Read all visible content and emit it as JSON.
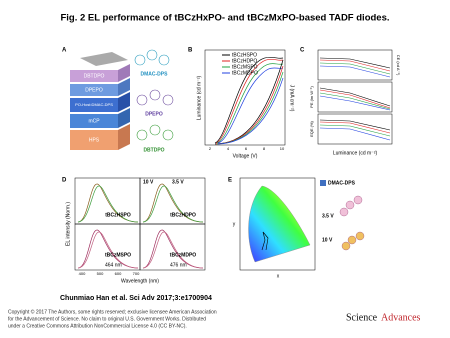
{
  "figure": {
    "title": "Fig. 2 EL performance of tBCzHxPO- and tBCzMxPO-based TADF diodes.",
    "panels": {
      "a": {
        "label": "A",
        "layers": [
          "DBTDPO",
          "DPEPO",
          "PO-Host:DMAC-DPS",
          "mCP",
          "HPS"
        ],
        "molecules": [
          "DMAC-DPS",
          "DPEPO",
          "DBTDPO"
        ]
      },
      "b": {
        "label": "B",
        "legend": [
          "tBCzHSPO",
          "tBCzHDPO",
          "tBCzMSPO",
          "tBCzMDPO"
        ],
        "x_label": "Voltage (V)",
        "y_label": "Luminance (cd m⁻²)",
        "y2_label": "J (mA cm⁻²)",
        "xticks": [
          "2",
          "4",
          "6",
          "8",
          "10"
        ]
      },
      "c": {
        "label": "C",
        "y_labels": [
          "CE (cd A⁻¹)",
          "PE (lm W⁻¹)",
          "EQE (%)"
        ],
        "x_label": "Luminance (cd m⁻²)"
      },
      "d": {
        "label": "D",
        "compounds": [
          "tBCzHSPO",
          "tBCzHDPO",
          "tBCzMSPO",
          "tBCzMDPO"
        ],
        "voltages": [
          "10 V",
          "3.5 V"
        ],
        "peaks": [
          "464 nm",
          "476 nm"
        ],
        "x_label": "Wavelength (nm)",
        "y_label": "EL intensity (Norm.)",
        "xticks": [
          "400",
          "500",
          "600",
          "700"
        ]
      },
      "e": {
        "label": "E",
        "x_label": "x",
        "y_label": "y",
        "legend": "DMAC-DPS",
        "voltages": [
          "3.5 V",
          "10 V"
        ]
      }
    },
    "citation": "Chunmiao Han et al. Sci Adv 2017;3:e1700904",
    "copyright": [
      "Copyright © 2017 The Authors, some rights reserved; exclusive licensee American Association",
      "for the Advancement of Science. No claim to original U.S. Government Works. Distributed",
      "under a Creative Commons Attribution NonCommercial License 4.0 (CC BY-NC)."
    ],
    "logo": [
      "Science",
      "Advances"
    ]
  }
}
